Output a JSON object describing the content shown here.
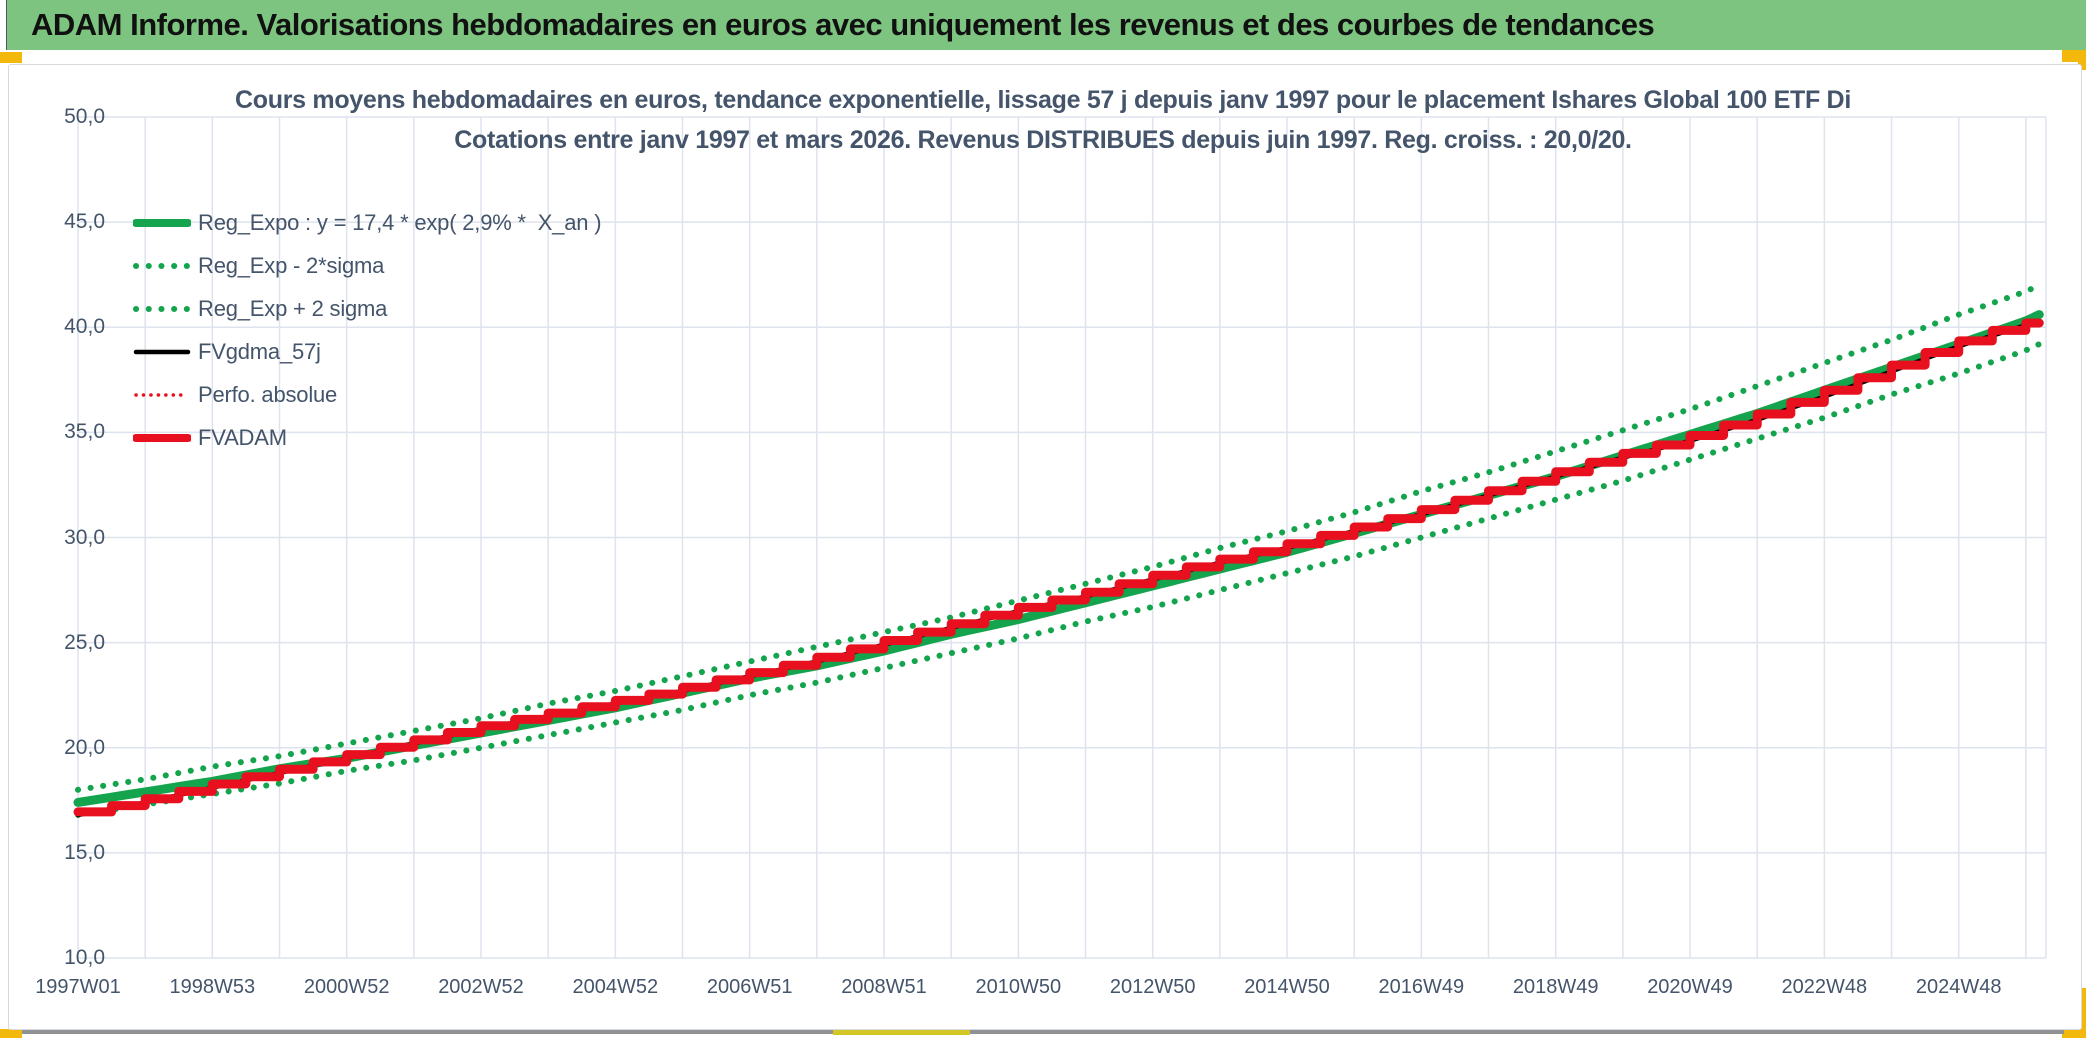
{
  "window": {
    "header": {
      "title": "ADAM Informe. Valorisations hebdomadaires en euros avec uniquement les revenus et des courbes de tendances",
      "bg_color": "#7CC47F",
      "text_color": "#111111"
    },
    "accent_colors": {
      "gold_marker": "#F2B90C",
      "olive_segment": "#D3C728",
      "bottom_bar_gray": "#8F9091"
    }
  },
  "chart_data": {
    "type": "line",
    "title": "Cours moyens hebdomadaires en euros, tendance exponentielle, lissage 57 j depuis janv 1997 pour le placement Ishares Global 100 ETF Di",
    "subtitle": "Cotations entre janv 1997 et mars 2026. Revenus DISTRIBUES depuis juin 1997. Reg. croiss. : 20,0/20.",
    "title_color": "#44546A",
    "grid": true,
    "gridline_color": "#DEE3ED",
    "legend_position": "inside-top-left",
    "x_axis": {
      "label_unit": "ISO week (yearWweek)",
      "tick_labels": [
        "1997W01",
        "1998W53",
        "2000W52",
        "2002W52",
        "2004W52",
        "2006W51",
        "2008W51",
        "2010W50",
        "2012W50",
        "2014W50",
        "2016W49",
        "2018W49",
        "2020W49",
        "2022W48",
        "2024W48"
      ],
      "ticks_every_years": 2,
      "gridlines_every_years": 1,
      "range_years": [
        0,
        29.3
      ],
      "start_label_year": 1997
    },
    "y_axis": {
      "min": 10,
      "max": 50,
      "step": 5,
      "tick_labels": [
        "50,0",
        "45,0",
        "40,0",
        "35,0",
        "30,0",
        "25,0",
        "20,0",
        "15,0",
        "10,0"
      ]
    },
    "sample_t_years": [
      0,
      1,
      2,
      3,
      4,
      5,
      6,
      7,
      8,
      9,
      10,
      11,
      12,
      13,
      14,
      15,
      16,
      17,
      18,
      19,
      20,
      21,
      22,
      23,
      24,
      25,
      26,
      27,
      28,
      29,
      29.2
    ],
    "series": [
      {
        "key": "reg_expo",
        "name": "Reg_Expo : y = 17,4 * exp( 2,9% *  X_an )",
        "color": "#14A44D",
        "style": "solid",
        "width": 9,
        "render": "line",
        "values": [
          17.4,
          17.9,
          18.4,
          19.0,
          19.5,
          20.1,
          20.7,
          21.3,
          21.9,
          22.6,
          23.3,
          23.9,
          24.6,
          25.4,
          26.1,
          26.9,
          27.7,
          28.5,
          29.3,
          30.2,
          31.1,
          32.0,
          32.9,
          33.9,
          34.9,
          35.9,
          37.0,
          38.1,
          39.2,
          40.3,
          40.6
        ]
      },
      {
        "key": "reg_minus2sigma",
        "name": "Reg_Exp - 2*sigma",
        "color": "#14A44D",
        "style": "dotted",
        "width": 6,
        "render": "line",
        "values": [
          16.8,
          17.3,
          17.8,
          18.3,
          18.9,
          19.4,
          20.0,
          20.6,
          21.2,
          21.8,
          22.5,
          23.1,
          23.8,
          24.5,
          25.2,
          26.0,
          26.7,
          27.5,
          28.3,
          29.1,
          30.0,
          30.9,
          31.8,
          32.7,
          33.7,
          34.7,
          35.7,
          36.8,
          37.8,
          38.9,
          39.2
        ]
      },
      {
        "key": "reg_plus2sigma",
        "name": "Reg_Exp + 2 sigma",
        "color": "#14A44D",
        "style": "dotted",
        "width": 6,
        "render": "line",
        "values": [
          18.0,
          18.5,
          19.1,
          19.6,
          20.2,
          20.8,
          21.4,
          22.1,
          22.7,
          23.4,
          24.1,
          24.8,
          25.5,
          26.2,
          27.0,
          27.8,
          28.6,
          29.5,
          30.3,
          31.2,
          32.2,
          33.1,
          34.1,
          35.1,
          36.1,
          37.2,
          38.3,
          39.4,
          40.6,
          41.7,
          42.0
        ]
      },
      {
        "key": "fvgdma_57j",
        "name": "FVgdma_57j",
        "color": "#000000",
        "style": "solid",
        "width": 4.5,
        "render": "line",
        "values": [
          16.8,
          17.4,
          18.1,
          18.8,
          19.5,
          20.2,
          20.9,
          21.5,
          22.1,
          22.7,
          23.4,
          24.1,
          24.9,
          25.7,
          26.5,
          27.2,
          28.0,
          28.8,
          29.5,
          30.3,
          31.1,
          32.0,
          32.9,
          33.8,
          34.6,
          35.6,
          36.7,
          37.9,
          39.1,
          40.1,
          40.2
        ]
      },
      {
        "key": "perfo_absolue",
        "name": "Perfo. absolue",
        "color": "#E8101E",
        "style": "dotted",
        "width": 3.5,
        "render": "line",
        "values": [
          16.8,
          17.4,
          18.1,
          18.8,
          19.5,
          20.2,
          20.9,
          21.5,
          22.1,
          22.7,
          23.4,
          24.1,
          24.9,
          25.7,
          26.5,
          27.2,
          28.0,
          28.8,
          29.5,
          30.3,
          31.1,
          32.0,
          32.9,
          33.8,
          34.6,
          35.6,
          36.7,
          37.9,
          39.1,
          40.1,
          40.2
        ]
      },
      {
        "key": "fvadam",
        "name": "FVADAM",
        "color": "#E8101E",
        "style": "solid",
        "width": 9,
        "render": "steps",
        "step_width_years": 0.5,
        "values": [
          16.8,
          17.4,
          18.1,
          18.8,
          19.5,
          20.2,
          20.9,
          21.5,
          22.1,
          22.7,
          23.4,
          24.1,
          24.9,
          25.7,
          26.5,
          27.2,
          28.0,
          28.8,
          29.5,
          30.3,
          31.1,
          32.0,
          32.9,
          33.8,
          34.6,
          35.6,
          36.7,
          37.9,
          39.1,
          40.1,
          40.2
        ]
      }
    ]
  }
}
